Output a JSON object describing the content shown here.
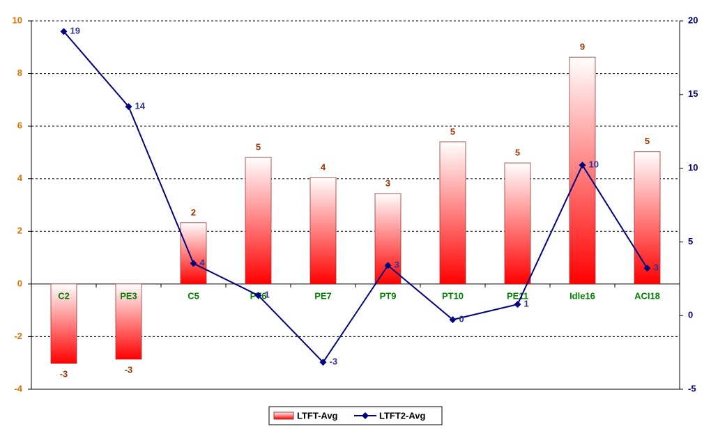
{
  "chart_data": {
    "type": "bar",
    "categories": [
      "C2",
      "PE3",
      "C5",
      "PT6",
      "PE7",
      "PT9",
      "PT10",
      "PE11",
      "Idle16",
      "ACI18"
    ],
    "series": [
      {
        "name": "LTFT-Avg",
        "type": "bar",
        "color": "#ff0000",
        "values": [
          -3.02,
          -2.86,
          2.33,
          4.81,
          4.05,
          3.44,
          5.4,
          4.6,
          8.62,
          5.03
        ],
        "value_labels": [
          "-3",
          "-3",
          "2",
          "5",
          "4",
          "3",
          "5",
          "5",
          "9",
          "5"
        ]
      },
      {
        "name": "LTFT2-Avg",
        "type": "line",
        "axis": "y2",
        "color": "#000080",
        "values": [
          19.28,
          14.18,
          3.54,
          1.37,
          -3.17,
          3.4,
          -0.28,
          0.76,
          10.21,
          3.21
        ],
        "value_labels": [
          "19",
          "14",
          "4",
          "1",
          "-3",
          "3",
          "0",
          "1",
          "10",
          "3"
        ]
      }
    ],
    "ylim": [
      -4,
      10
    ],
    "yticks": [
      -4,
      -2,
      0,
      2,
      4,
      6,
      8,
      10
    ],
    "y2lim": [
      -5,
      20
    ],
    "y2ticks": [
      -5,
      0,
      5,
      10,
      15,
      20
    ],
    "grid": true
  }
}
